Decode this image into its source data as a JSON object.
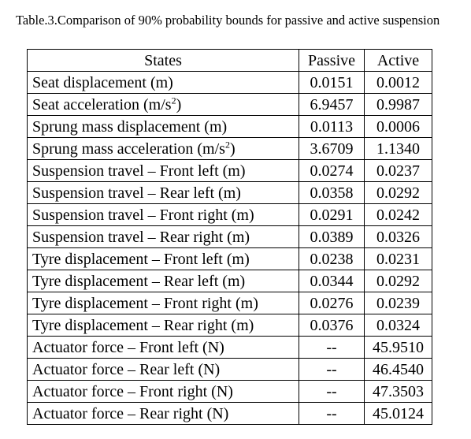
{
  "caption": "Table.3.Comparison of 90% probability bounds for passive and active suspension",
  "table": {
    "headers": [
      "States",
      "Passive",
      "Active"
    ],
    "rows": [
      {
        "state": "Seat displacement (m)",
        "passive": "0.0151",
        "active": "0.0012"
      },
      {
        "state": "Seat acceleration (m/s",
        "sup": "2",
        "tail": ")",
        "passive": "6.9457",
        "active": "0.9987"
      },
      {
        "state": "Sprung mass displacement (m)",
        "passive": "0.0113",
        "active": "0.0006"
      },
      {
        "state": "Sprung mass acceleration (m/s",
        "sup": "2",
        "tail": ")",
        "passive": "3.6709",
        "active": "1.1340"
      },
      {
        "state": "Suspension travel – Front left (m)",
        "passive": "0.0274",
        "active": "0.0237"
      },
      {
        "state": "Suspension travel – Rear left (m)",
        "passive": "0.0358",
        "active": "0.0292"
      },
      {
        "state": "Suspension travel – Front right (m)",
        "passive": "0.0291",
        "active": "0.0242"
      },
      {
        "state": "Suspension travel – Rear right (m)",
        "passive": "0.0389",
        "active": "0.0326"
      },
      {
        "state": "Tyre displacement – Front left (m)",
        "passive": "0.0238",
        "active": "0.0231"
      },
      {
        "state": "Tyre displacement – Rear left (m)",
        "passive": "0.0344",
        "active": "0.0292"
      },
      {
        "state": "Tyre displacement – Front right (m)",
        "passive": "0.0276",
        "active": "0.0239"
      },
      {
        "state": "Tyre displacement – Rear right (m)",
        "passive": "0.0376",
        "active": "0.0324"
      },
      {
        "state": "Actuator force – Front left (N)",
        "passive": "--",
        "active": "45.9510"
      },
      {
        "state": "Actuator force – Rear left (N)",
        "passive": "--",
        "active": "46.4540"
      },
      {
        "state": "Actuator force – Front right (N)",
        "passive": "--",
        "active": "47.3503"
      },
      {
        "state": "Actuator force – Rear right (N)",
        "passive": "--",
        "active": "45.0124"
      }
    ]
  }
}
